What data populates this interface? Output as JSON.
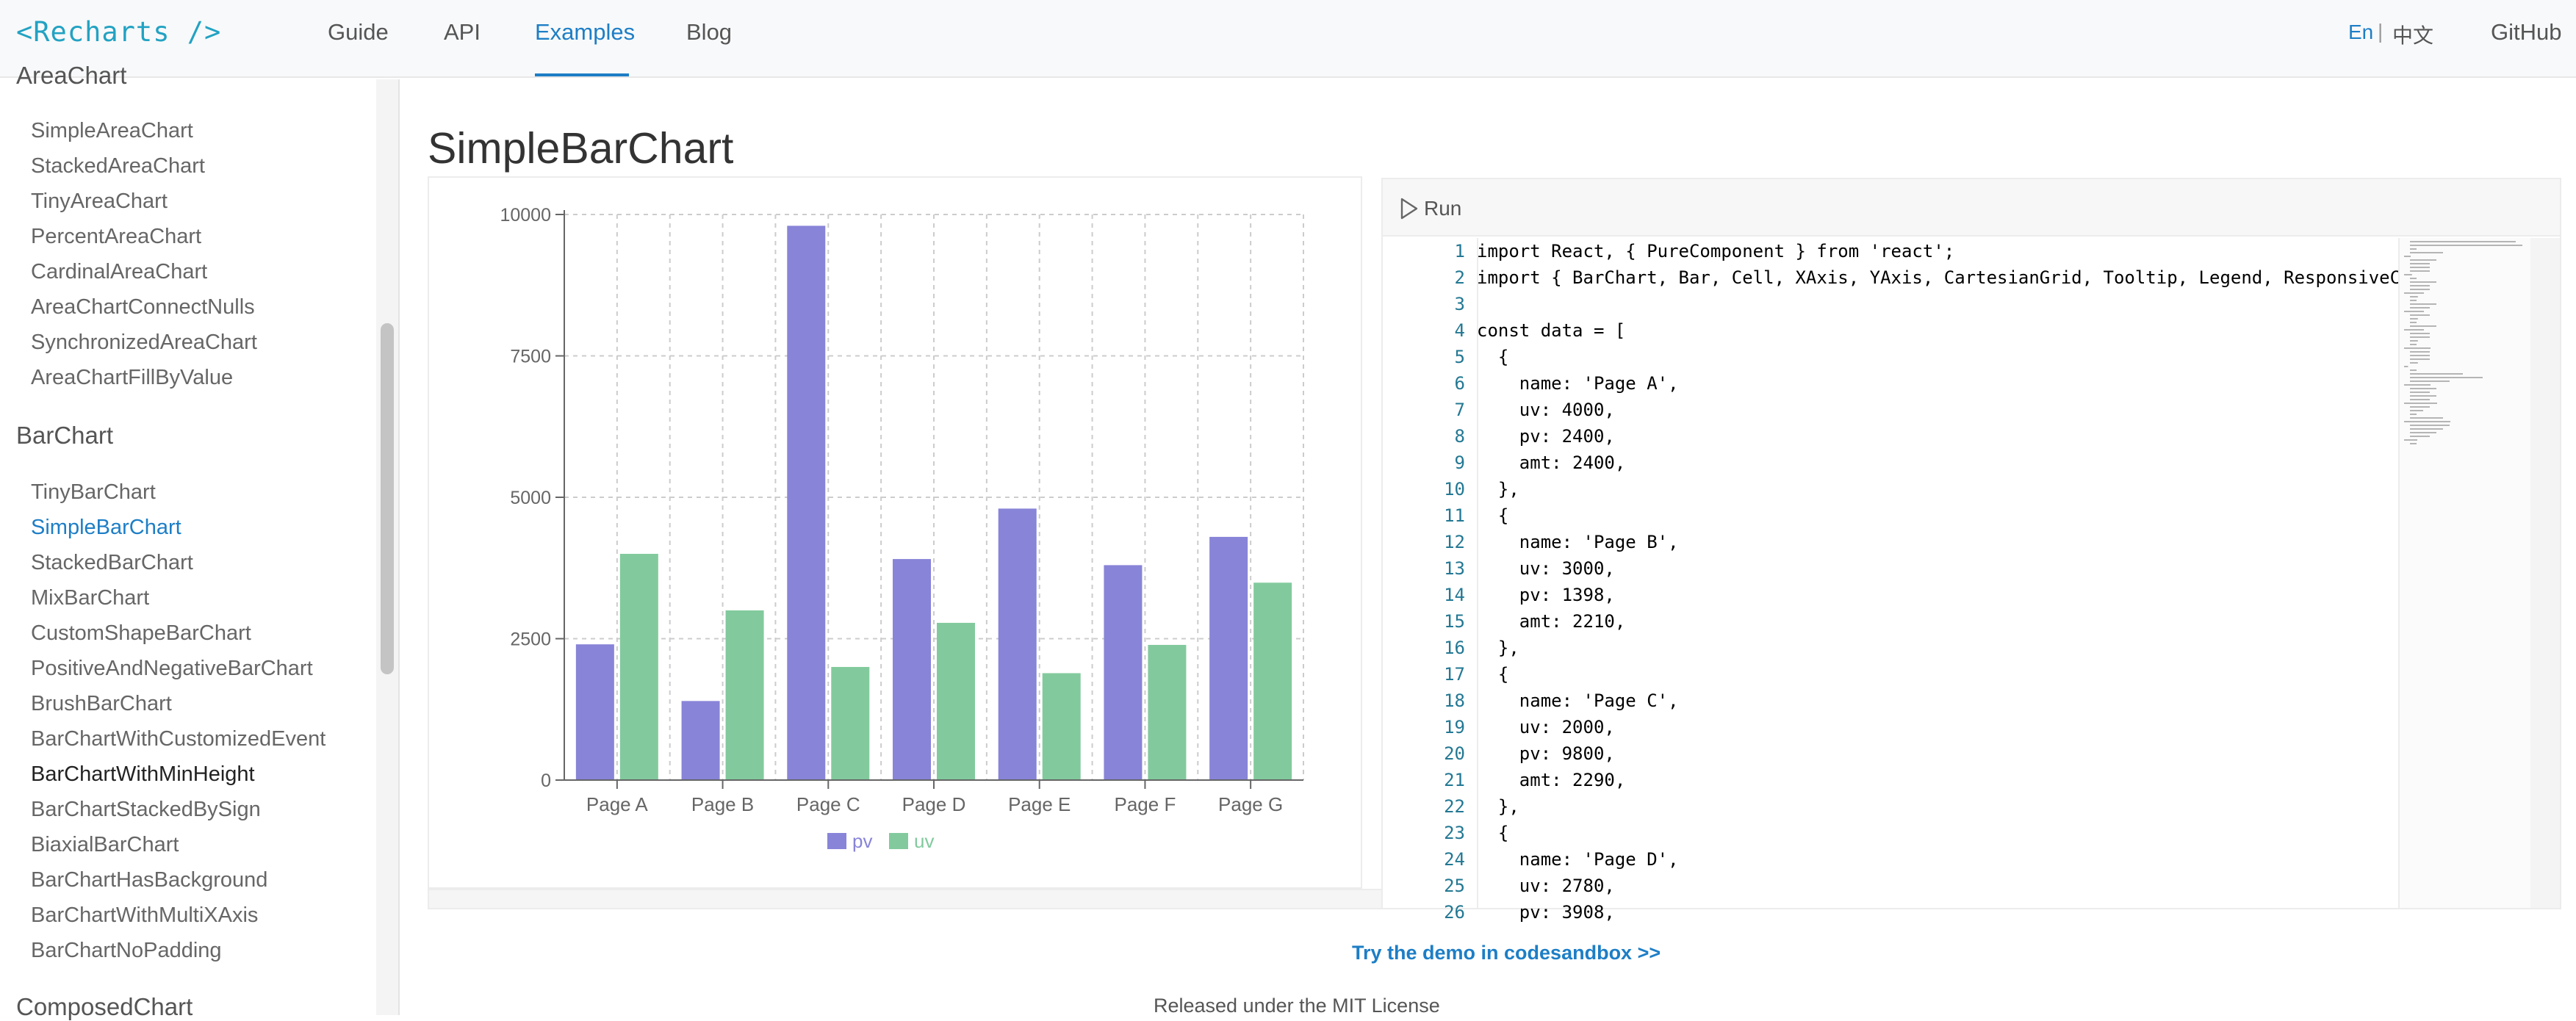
{
  "header": {
    "logo": "<Recharts />",
    "nav": [
      {
        "label": "Guide"
      },
      {
        "label": "API"
      },
      {
        "label": "Examples"
      },
      {
        "label": "Blog"
      }
    ],
    "lang_en": "En",
    "lang_sep": "|",
    "lang_zh": "中文",
    "github": "GitHub"
  },
  "sidebar": {
    "area_group_label": "AreaChart",
    "area_items": [
      "SimpleAreaChart",
      "StackedAreaChart",
      "TinyAreaChart",
      "PercentAreaChart",
      "CardinalAreaChart",
      "AreaChartConnectNulls",
      "SynchronizedAreaChart",
      "AreaChartFillByValue"
    ],
    "bar_group_label": "BarChart",
    "bar_items": [
      "TinyBarChart",
      "SimpleBarChart",
      "StackedBarChart",
      "MixBarChart",
      "CustomShapeBarChart",
      "PositiveAndNegativeBarChart",
      "BrushBarChart",
      "BarChartWithCustomizedEvent",
      "BarChartWithMinHeight",
      "BarChartStackedBySign",
      "BiaxialBarChart",
      "BarChartHasBackground",
      "BarChartWithMultiXAxis",
      "BarChartNoPadding"
    ],
    "active_item": "SimpleBarChart",
    "hover_item": "BarChartWithMinHeight",
    "composed_group_label": "ComposedChart"
  },
  "main": {
    "title": "SimpleBarChart",
    "run_label": "Run",
    "codesandbox_link": "Try the demo in codesandbox >>",
    "footer": "Released under the MIT License"
  },
  "chart_data": {
    "type": "bar",
    "categories": [
      "Page A",
      "Page B",
      "Page C",
      "Page D",
      "Page E",
      "Page F",
      "Page G"
    ],
    "series": [
      {
        "name": "pv",
        "color": "#8884d8",
        "values": [
          2400,
          1398,
          9800,
          3908,
          4800,
          3800,
          4300
        ]
      },
      {
        "name": "uv",
        "color": "#82ca9d",
        "values": [
          4000,
          3000,
          2000,
          2780,
          1890,
          2390,
          3490
        ]
      }
    ],
    "yticks": [
      "0",
      "2500",
      "5000",
      "7500",
      "10000"
    ],
    "ylim": [
      0,
      10000
    ],
    "grid": true,
    "grid_style": "dashed",
    "legend_position": "bottom-center"
  },
  "code": {
    "lines": [
      "import React, { PureComponent } from 'react';",
      "import { BarChart, Bar, Cell, XAxis, YAxis, CartesianGrid, Tooltip, Legend, ResponsiveC",
      "",
      "const data = [",
      "  {",
      "    name: 'Page A',",
      "    uv: 4000,",
      "    pv: 2400,",
      "    amt: 2400,",
      "  },",
      "  {",
      "    name: 'Page B',",
      "    uv: 3000,",
      "    pv: 1398,",
      "    amt: 2210,",
      "  },",
      "  {",
      "    name: 'Page C',",
      "    uv: 2000,",
      "    pv: 9800,",
      "    amt: 2290,",
      "  },",
      "  {",
      "    name: 'Page D',",
      "    uv: 2780,",
      "    pv: 3908,"
    ],
    "line_numbers": [
      "1",
      "2",
      "3",
      "4",
      "5",
      "6",
      "7",
      "8",
      "9",
      "10",
      "11",
      "12",
      "13",
      "14",
      "15",
      "16",
      "17",
      "18",
      "19",
      "20",
      "21",
      "22",
      "23",
      "24",
      "25",
      "26"
    ]
  }
}
